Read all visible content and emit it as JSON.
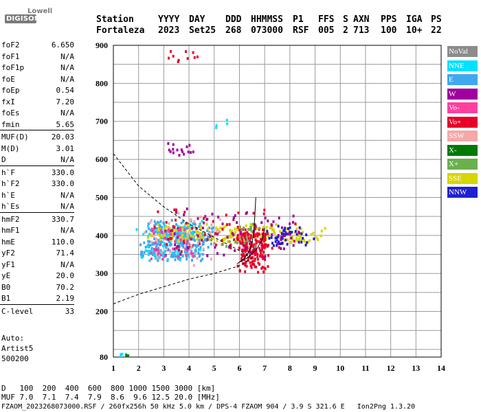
{
  "logo": {
    "brand": "Lowell",
    "product": "DIGISONDE"
  },
  "header": {
    "labels": [
      "Station",
      "YYYY",
      "DAY",
      "DDD",
      "HHMMSS",
      "P1",
      "FFS",
      "S",
      "AXN",
      "PPS",
      "IGA",
      "PS"
    ],
    "values": [
      "Fortaleza",
      "2023",
      "Set25",
      "268",
      "073000",
      "RSF",
      "005",
      "2",
      "713",
      "100",
      "10+",
      "22"
    ]
  },
  "params": [
    {
      "label": "foF2",
      "value": "6.650"
    },
    {
      "label": "foF1",
      "value": "N/A"
    },
    {
      "label": "foF1p",
      "value": "N/A"
    },
    {
      "label": "foE",
      "value": "N/A"
    },
    {
      "label": "foEp",
      "value": "0.54"
    },
    {
      "label": "fxI",
      "value": "7.20"
    },
    {
      "label": "foEs",
      "value": "N/A"
    },
    {
      "label": "fmin",
      "value": "5.65"
    },
    {
      "label": "MUF(D)",
      "value": "20.03"
    },
    {
      "label": "M(D)",
      "value": "3.01"
    },
    {
      "label": "D",
      "value": "N/A"
    },
    {
      "label": "h`F",
      "value": "330.0"
    },
    {
      "label": "h`F2",
      "value": "330.0"
    },
    {
      "label": "h`E",
      "value": "N/A"
    },
    {
      "label": "h`Es",
      "value": "N/A"
    },
    {
      "label": "hmF2",
      "value": "330.7"
    },
    {
      "label": "hmF1",
      "value": "N/A"
    },
    {
      "label": "hmE",
      "value": "110.0"
    },
    {
      "label": "yF2",
      "value": "71.4"
    },
    {
      "label": "yF1",
      "value": "N/A"
    },
    {
      "label": "yE",
      "value": "20.0"
    },
    {
      "label": "B0",
      "value": "70.2"
    },
    {
      "label": "B1",
      "value": "2.19"
    },
    {
      "label": "C-level",
      "value": "33"
    }
  ],
  "auto": {
    "line1": "Auto:",
    "line2": "Artist5",
    "line3": "500200"
  },
  "legend": [
    {
      "label": "NoVal",
      "color": "#8c8c8c"
    },
    {
      "label": "NNE",
      "color": "#00e0ff"
    },
    {
      "label": "E",
      "color": "#3fa8f0"
    },
    {
      "label": "W",
      "color": "#a000a0"
    },
    {
      "label": "Vo-",
      "color": "#ff3fa0"
    },
    {
      "label": "Vo+",
      "color": "#e8002a"
    },
    {
      "label": "SSW",
      "color": "#f4a8a8"
    },
    {
      "label": "X-",
      "color": "#007a00"
    },
    {
      "label": "X+",
      "color": "#6ab04c"
    },
    {
      "label": "SSE",
      "color": "#d6d600"
    },
    {
      "label": "NNW",
      "color": "#2020d0"
    }
  ],
  "bottom": {
    "d_label": "D",
    "d_values": "100  200  400  600  800 1000 1500 3000 [km]",
    "muf_label": "MUF",
    "muf_values": "7.0  7.1  7.4  7.9  8.6  9.6 12.5 20.0 [MHz]",
    "footer": "FZAOM_2023268073000.RSF / 260fx256h 50 kHz 5.0 km / DPS-4 FZAOM 904 / 3.9 S 321.6 E   Ion2Png 1.3.20"
  },
  "chart_data": {
    "type": "scatter",
    "xlim": [
      1,
      14
    ],
    "ylim": [
      80,
      900
    ],
    "xticks": [
      "1",
      "2",
      "3",
      "4",
      "5",
      "6",
      "7",
      "8",
      "9",
      "10",
      "11",
      "12",
      "13",
      "14"
    ],
    "yticks": [
      "900",
      "800",
      "700",
      "600",
      "500",
      "400",
      "300",
      "200",
      "80"
    ],
    "grid": true,
    "legend_position": "right",
    "clusters": [
      {
        "name": "E",
        "color": "#3fa8f0",
        "fmin": 2.0,
        "fmax": 5.0,
        "hmin": 330,
        "hmax": 440,
        "count": 320
      },
      {
        "name": "NNE",
        "color": "#00e0ff",
        "fmin": 1.8,
        "fmax": 4.6,
        "hmin": 320,
        "hmax": 440,
        "count": 70
      },
      {
        "name": "SSE",
        "color": "#d6d600",
        "fmin": 1.9,
        "fmax": 9.6,
        "hmin": 380,
        "hmax": 430,
        "count": 190
      },
      {
        "name": "Vo+",
        "color": "#e8002a",
        "fmin": 5.9,
        "fmax": 7.2,
        "hmin": 300,
        "hmax": 420,
        "count": 190
      },
      {
        "name": "Vo+",
        "color": "#e8002a",
        "fmin": 2.3,
        "fmax": 8.6,
        "hmin": 340,
        "hmax": 480,
        "count": 70
      },
      {
        "name": "W",
        "color": "#a000a0",
        "fmin": 2.3,
        "fmax": 9.0,
        "hmin": 330,
        "hmax": 470,
        "count": 80
      },
      {
        "name": "NNW",
        "color": "#2020d0",
        "fmin": 7.0,
        "fmax": 9.0,
        "hmin": 370,
        "hmax": 430,
        "count": 40
      },
      {
        "name": "SSW",
        "color": "#f4a8a8",
        "fmin": 2.0,
        "fmax": 5.5,
        "hmin": 320,
        "hmax": 460,
        "count": 40
      },
      {
        "name": "Vo-",
        "color": "#ff3fa0",
        "fmin": 2.2,
        "fmax": 4.5,
        "hmin": 330,
        "hmax": 430,
        "count": 40
      },
      {
        "name": "X+",
        "color": "#6ab04c",
        "fmin": 4.6,
        "fmax": 6.8,
        "hmin": 360,
        "hmax": 440,
        "count": 20
      },
      {
        "name": "Vo+",
        "color": "#e8002a",
        "fmin": 3.0,
        "fmax": 4.4,
        "hmin": 855,
        "hmax": 895,
        "count": 10
      },
      {
        "name": "W",
        "color": "#a000a0",
        "fmin": 3.0,
        "fmax": 4.4,
        "hmin": 600,
        "hmax": 650,
        "count": 16
      },
      {
        "name": "NNE",
        "color": "#00e0ff",
        "fmin": 5.0,
        "fmax": 5.6,
        "hmin": 670,
        "hmax": 710,
        "count": 4
      },
      {
        "name": "NNE",
        "color": "#00e0ff",
        "fmin": 1.2,
        "fmax": 1.6,
        "hmin": 82,
        "hmax": 90,
        "count": 5
      },
      {
        "name": "X-",
        "color": "#007a00",
        "fmin": 1.5,
        "fmax": 1.6,
        "hmin": 82,
        "hmax": 90,
        "count": 3
      }
    ],
    "profile_curve": [
      [
        5.9,
        325
      ],
      [
        6.2,
        340
      ],
      [
        6.4,
        360
      ],
      [
        6.5,
        380
      ],
      [
        6.55,
        400
      ],
      [
        6.6,
        440
      ],
      [
        6.65,
        500
      ]
    ],
    "trace_curve": [
      [
        6.0,
        330
      ],
      [
        6.3,
        340
      ],
      [
        6.5,
        352
      ],
      [
        6.7,
        365
      ],
      [
        6.9,
        390
      ],
      [
        7.0,
        420
      ]
    ],
    "dashed_lower": [
      [
        1.0,
        220
      ],
      [
        2.0,
        245
      ],
      [
        3.0,
        265
      ],
      [
        4.0,
        285
      ],
      [
        5.0,
        300
      ],
      [
        6.0,
        320
      ],
      [
        6.6,
        345
      ]
    ],
    "dashed_upper": [
      [
        1.0,
        615
      ],
      [
        2.0,
        530
      ],
      [
        3.0,
        475
      ],
      [
        4.0,
        430
      ],
      [
        5.0,
        395
      ],
      [
        6.0,
        360
      ],
      [
        6.4,
        345
      ]
    ]
  }
}
